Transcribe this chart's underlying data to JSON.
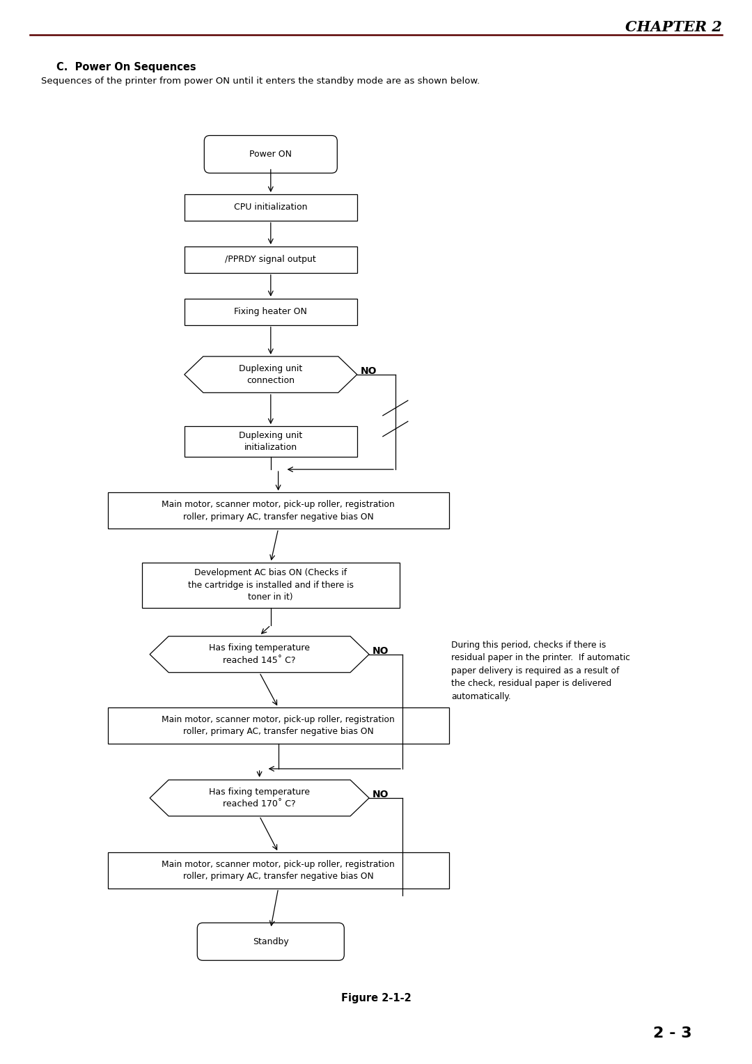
{
  "page_width": 10.8,
  "page_height": 15.28,
  "bg_color": "#ffffff",
  "chapter_title": "CHAPTER 2",
  "section_title": "C.  Power On Sequences",
  "section_body": "Sequences of the printer from power ON until it enters the standby mode are as shown below.",
  "figure_caption": "Figure 2-1-2",
  "page_number": "2 - 3",
  "header_line_color": "#5a0000",
  "side_note": "During this period, checks if there is\nresidual paper in the printer.  If automatic\npaper delivery is required as a result of\nthe check, residual paper is delivered\nautomatically."
}
